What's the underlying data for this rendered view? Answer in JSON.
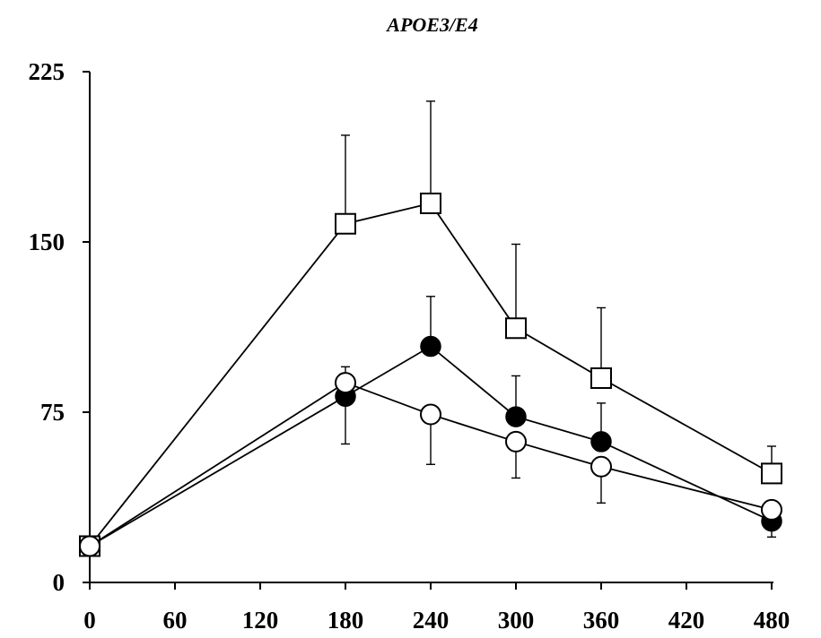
{
  "chart_data": {
    "type": "line",
    "title": "APOE3/E4",
    "xlabel": "",
    "ylabel": "",
    "x": [
      0,
      180,
      240,
      300,
      360,
      480
    ],
    "xlim": [
      0,
      480
    ],
    "ylim": [
      0,
      225
    ],
    "x_ticks": [
      0,
      60,
      120,
      180,
      240,
      300,
      360,
      420,
      480
    ],
    "y_ticks": [
      0,
      75,
      150,
      225
    ],
    "grid": false,
    "legend": "none",
    "series": [
      {
        "marker": "open-square",
        "values": [
          16,
          158,
          167,
          112,
          90,
          48
        ],
        "error_plus": [
          0,
          39,
          45,
          37,
          31,
          12
        ],
        "error_minus": [
          0,
          0,
          0,
          0,
          0,
          0
        ]
      },
      {
        "marker": "filled-circle",
        "values": [
          16,
          82,
          104,
          73,
          62,
          27
        ],
        "error_plus": [
          0,
          0,
          22,
          18,
          17,
          0
        ],
        "error_minus": [
          0,
          21,
          0,
          0,
          0,
          7
        ]
      },
      {
        "marker": "open-circle",
        "values": [
          16,
          88,
          74,
          62,
          51,
          32
        ],
        "error_plus": [
          0,
          7,
          0,
          0,
          0,
          0
        ],
        "error_minus": [
          0,
          0,
          22,
          16,
          16,
          0
        ]
      }
    ]
  }
}
